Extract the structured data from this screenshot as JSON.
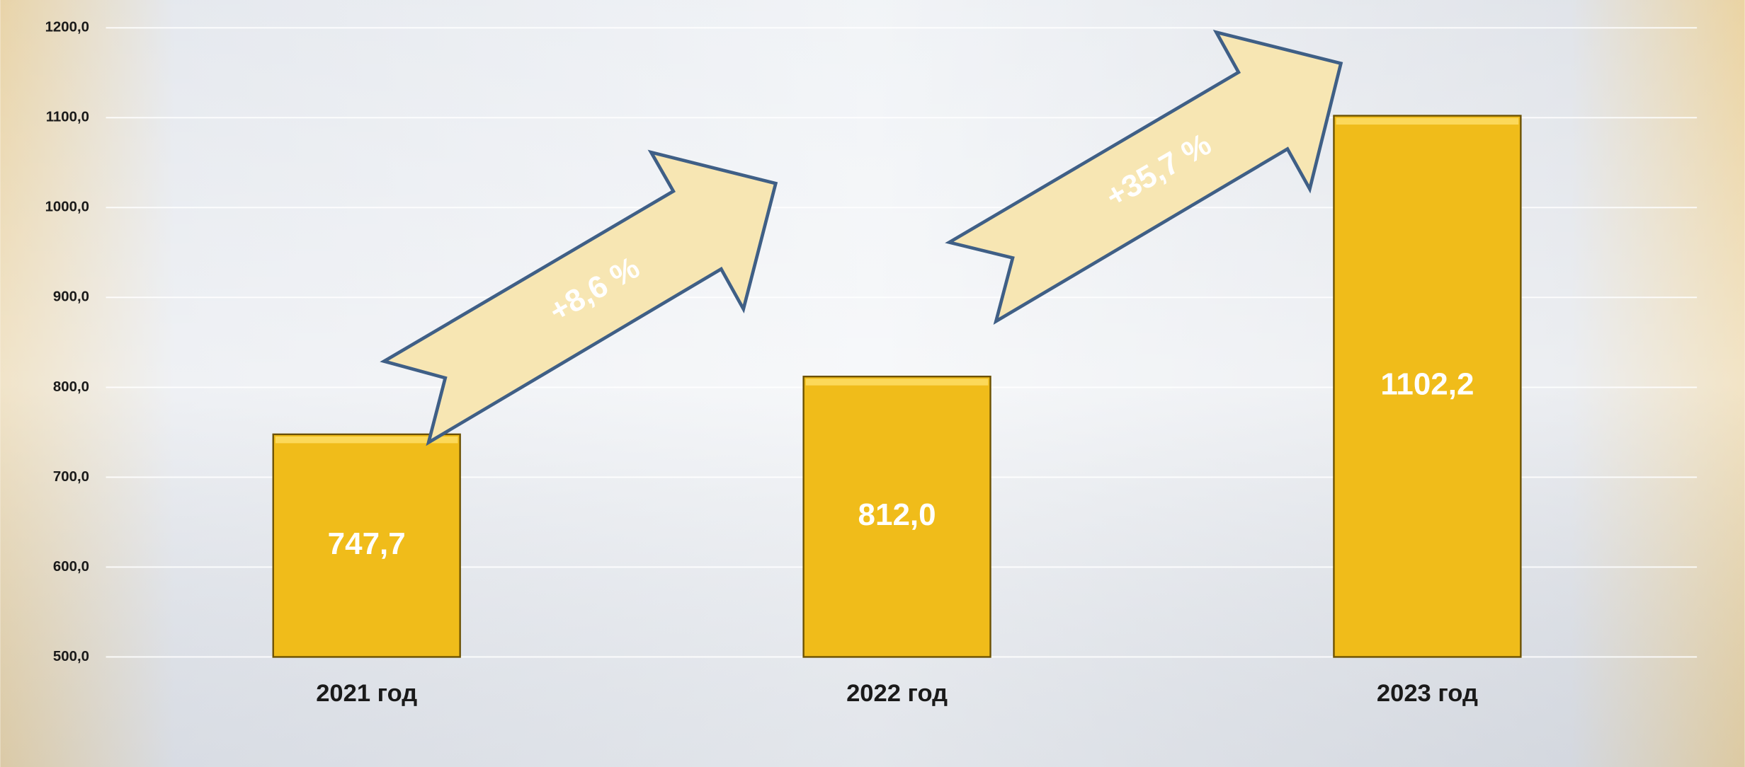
{
  "chart_data": {
    "type": "bar",
    "categories": [
      "2021 год",
      "2022 год",
      "2023 год"
    ],
    "values": [
      747.7,
      812.0,
      1102.2
    ],
    "value_labels": [
      "747,7",
      "812,0",
      "1102,2"
    ],
    "color": "#f0bc1a",
    "ylim": [
      500,
      1200
    ],
    "yticks": [
      {
        "value": 500,
        "label": "500,0"
      },
      {
        "value": 600,
        "label": "600,0"
      },
      {
        "value": 700,
        "label": "700,0"
      },
      {
        "value": 800,
        "label": "800,0"
      },
      {
        "value": 900,
        "label": "900,0"
      },
      {
        "value": 1000,
        "label": "1000,0"
      },
      {
        "value": 1100,
        "label": "1100,0"
      },
      {
        "value": 1200,
        "label": "1200,0"
      }
    ],
    "grid": true,
    "annotations": [
      "+8,6 %",
      "+35,7 %"
    ]
  }
}
